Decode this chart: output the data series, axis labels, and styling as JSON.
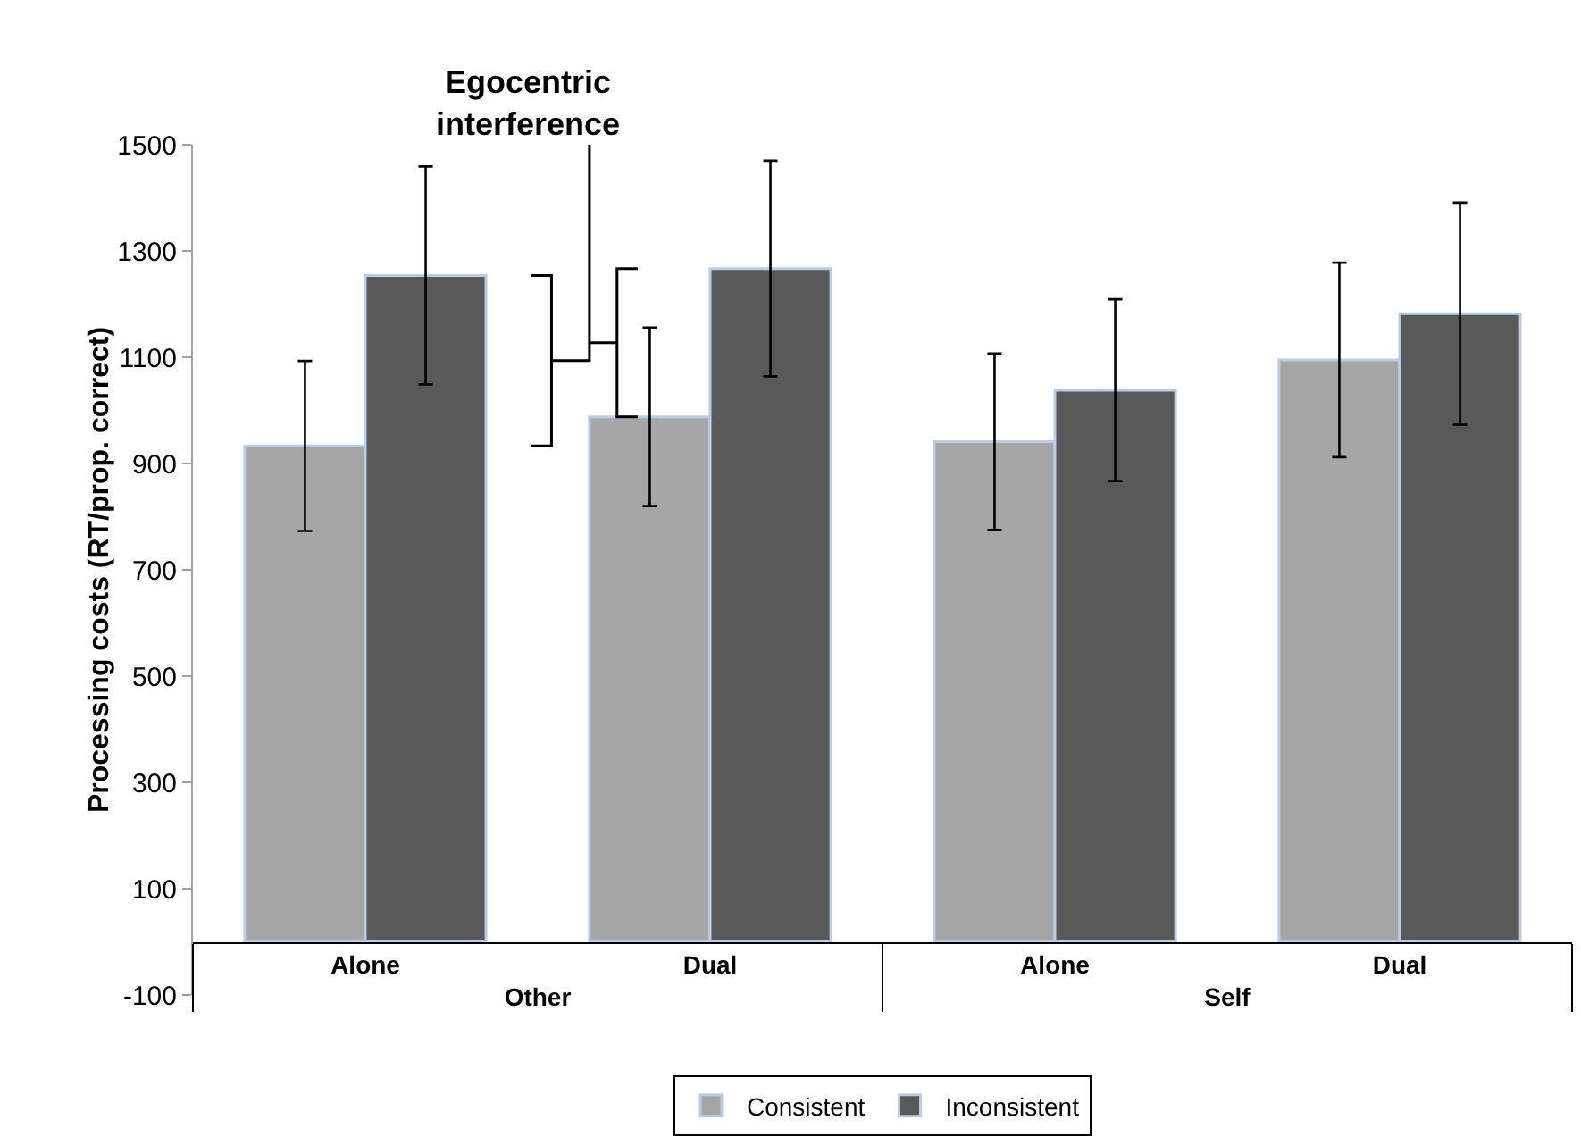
{
  "chart_data": {
    "type": "bar",
    "categories": [
      "Alone",
      "Dual",
      "Alone",
      "Dual"
    ],
    "ylabel": "Processing costs (RT/prop. correct)",
    "annotations": [
      "Egocentric interference",
      "Other",
      "Self"
    ],
    "series": [
      {
        "name": "Consistent",
        "color": "#a6a6a6",
        "values": [
          933,
          988,
          941,
          1095
        ],
        "errors": [
          160,
          168,
          166,
          183
        ]
      },
      {
        "name": "Inconsistent",
        "color": "#595959",
        "values": [
          1254,
          1267,
          1038,
          1182
        ],
        "errors": [
          205,
          203,
          171,
          209
        ]
      }
    ],
    "ylim": [
      -100,
      1500
    ],
    "yticks": [
      -100,
      100,
      300,
      500,
      700,
      900,
      1100,
      1300,
      1500
    ],
    "grid": false,
    "legend": "bottom"
  }
}
